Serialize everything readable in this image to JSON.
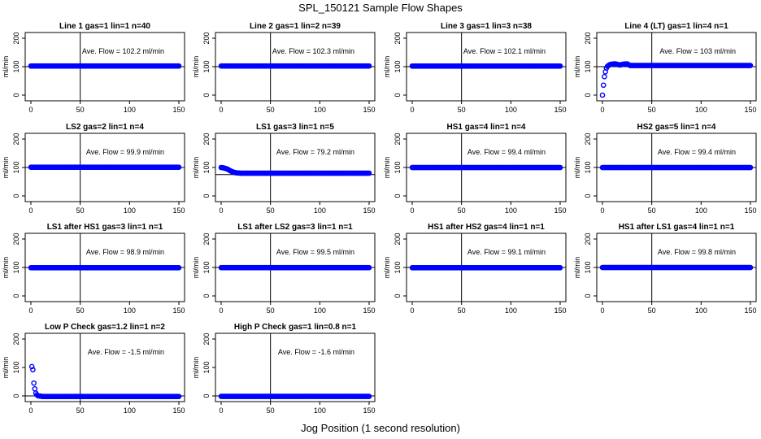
{
  "figure": {
    "title": "SPL_150121  Sample Flow Shapes",
    "xlabel": "Jog Position (1 second resolution)"
  },
  "colors": {
    "points": "#0000ff",
    "lines": "#000000"
  },
  "chart_data": [
    {
      "type": "scatter",
      "title": "Line 1 gas=1 lin=1 n=40",
      "ylabel": "ml/min",
      "annotation": "Ave. Flow = 102.2  ml/min",
      "xlim": [
        0,
        150
      ],
      "ylim": [
        -20,
        220
      ],
      "yticks": [
        0,
        100,
        200
      ],
      "xticks": [
        0,
        50,
        100,
        150
      ],
      "hline": 100,
      "vline": 50,
      "series": [
        {
          "x": [
            0,
            150
          ],
          "y": [
            102.2,
            102.2
          ]
        }
      ]
    },
    {
      "type": "scatter",
      "title": "Line 2 gas=1 lin=2 n=39",
      "ylabel": "ml/min",
      "annotation": "Ave. Flow = 102.3  ml/min",
      "xlim": [
        0,
        150
      ],
      "ylim": [
        -20,
        220
      ],
      "yticks": [
        0,
        100,
        200
      ],
      "xticks": [
        0,
        50,
        100,
        150
      ],
      "hline": 100,
      "vline": 50,
      "series": [
        {
          "x": [
            0,
            150
          ],
          "y": [
            102.3,
            102.3
          ]
        }
      ]
    },
    {
      "type": "scatter",
      "title": "Line 3 gas=1 lin=3 n=38",
      "ylabel": "ml/min",
      "annotation": "Ave. Flow = 102.1  ml/min",
      "xlim": [
        0,
        150
      ],
      "ylim": [
        -20,
        220
      ],
      "yticks": [
        0,
        100,
        200
      ],
      "xticks": [
        0,
        50,
        100,
        150
      ],
      "hline": 100,
      "vline": 50,
      "series": [
        {
          "x": [
            0,
            150
          ],
          "y": [
            102.1,
            102.1
          ]
        }
      ]
    },
    {
      "type": "scatter",
      "title": "Line 4 (LT) gas=1 lin=4 n=1",
      "ylabel": "ml/min",
      "annotation": "Ave. Flow = 103  ml/min",
      "xlim": [
        0,
        150
      ],
      "ylim": [
        -20,
        220
      ],
      "yticks": [
        0,
        100,
        200
      ],
      "xticks": [
        0,
        50,
        100,
        150
      ],
      "hline": 100,
      "vline": 50,
      "series": [
        {
          "x": [
            0,
            1,
            2,
            3,
            4,
            5,
            6,
            7,
            8,
            9,
            10,
            11,
            12,
            13,
            14,
            15,
            16,
            18,
            20,
            22,
            25,
            28,
            150
          ],
          "y": [
            0,
            35,
            65,
            82,
            95,
            101,
            104,
            106,
            108,
            108,
            109,
            109,
            110,
            110,
            109,
            108,
            107,
            106,
            108,
            109,
            110,
            104,
            104
          ]
        }
      ]
    },
    {
      "type": "scatter",
      "title": "LS2 gas=2 lin=1 n=4",
      "ylabel": "ml/min",
      "annotation": "Ave. Flow = 99.9  ml/min",
      "xlim": [
        0,
        150
      ],
      "ylim": [
        -20,
        220
      ],
      "yticks": [
        0,
        100,
        200
      ],
      "xticks": [
        0,
        50,
        100,
        150
      ],
      "hline": 100,
      "vline": 50,
      "series": [
        {
          "x": [
            0,
            150
          ],
          "y": [
            101,
            101
          ]
        }
      ]
    },
    {
      "type": "scatter",
      "title": "LS1 gas=3 lin=1 n=5",
      "ylabel": "ml/min",
      "annotation": "Ave. Flow = 79.2  ml/min",
      "xlim": [
        0,
        150
      ],
      "ylim": [
        -20,
        220
      ],
      "yticks": [
        0,
        100,
        200
      ],
      "xticks": [
        0,
        50,
        100,
        150
      ],
      "hline": 75,
      "vline": 50,
      "series": [
        {
          "x": [
            0,
            2,
            4,
            6,
            8,
            10,
            12,
            14,
            16,
            20,
            150
          ],
          "y": [
            100,
            99,
            97,
            95,
            91,
            87,
            84,
            82,
            81,
            80,
            80
          ]
        }
      ]
    },
    {
      "type": "scatter",
      "title": "HS1 gas=4 lin=1 n=4",
      "ylabel": "ml/min",
      "annotation": "Ave. Flow = 99.4  ml/min",
      "xlim": [
        0,
        150
      ],
      "ylim": [
        -20,
        220
      ],
      "yticks": [
        0,
        100,
        200
      ],
      "xticks": [
        0,
        50,
        100,
        150
      ],
      "hline": 100,
      "vline": 50,
      "series": [
        {
          "x": [
            0,
            150
          ],
          "y": [
            100,
            100
          ]
        }
      ]
    },
    {
      "type": "scatter",
      "title": "HS2 gas=5 lin=1 n=4",
      "ylabel": "ml/min",
      "annotation": "Ave. Flow = 99.4  ml/min",
      "xlim": [
        0,
        150
      ],
      "ylim": [
        -20,
        220
      ],
      "yticks": [
        0,
        100,
        200
      ],
      "xticks": [
        0,
        50,
        100,
        150
      ],
      "hline": 100,
      "vline": 50,
      "series": [
        {
          "x": [
            0,
            150
          ],
          "y": [
            100,
            100
          ]
        }
      ]
    },
    {
      "type": "scatter",
      "title": "LS1 after HS1 gas=3 lin=1 n=1",
      "ylabel": "ml/min",
      "annotation": "Ave. Flow = 98.9  ml/min",
      "xlim": [
        0,
        150
      ],
      "ylim": [
        -20,
        220
      ],
      "yticks": [
        0,
        100,
        200
      ],
      "xticks": [
        0,
        50,
        100,
        150
      ],
      "hline": 100,
      "vline": 50,
      "series": [
        {
          "x": [
            0,
            150
          ],
          "y": [
            99,
            99
          ]
        }
      ]
    },
    {
      "type": "scatter",
      "title": "LS1 after LS2 gas=3 lin=1 n=1",
      "ylabel": "ml/min",
      "annotation": "Ave. Flow = 99.5  ml/min",
      "xlim": [
        0,
        150
      ],
      "ylim": [
        -20,
        220
      ],
      "yticks": [
        0,
        100,
        200
      ],
      "xticks": [
        0,
        50,
        100,
        150
      ],
      "hline": 100,
      "vline": 50,
      "series": [
        {
          "x": [
            0,
            150
          ],
          "y": [
            99.5,
            99.5
          ]
        }
      ]
    },
    {
      "type": "scatter",
      "title": "HS1 after HS2 gas=4 lin=1 n=1",
      "ylabel": "ml/min",
      "annotation": "Ave. Flow = 99.1  ml/min",
      "xlim": [
        0,
        150
      ],
      "ylim": [
        -20,
        220
      ],
      "yticks": [
        0,
        100,
        200
      ],
      "xticks": [
        0,
        50,
        100,
        150
      ],
      "hline": 100,
      "vline": 50,
      "series": [
        {
          "x": [
            0,
            150
          ],
          "y": [
            99,
            99
          ]
        }
      ]
    },
    {
      "type": "scatter",
      "title": "HS1 after LS1 gas=4 lin=1 n=1",
      "ylabel": "ml/min",
      "annotation": "Ave. Flow = 99.8  ml/min",
      "xlim": [
        0,
        150
      ],
      "ylim": [
        -20,
        220
      ],
      "yticks": [
        0,
        100,
        200
      ],
      "xticks": [
        0,
        50,
        100,
        150
      ],
      "hline": 100,
      "vline": 50,
      "series": [
        {
          "x": [
            0,
            150
          ],
          "y": [
            100,
            100
          ]
        }
      ]
    },
    {
      "type": "scatter",
      "title": "Low P Check gas=1.2 lin=1 n=2",
      "ylabel": "ml/min",
      "annotation": "Ave. Flow = -1.5  ml/min",
      "xlim": [
        0,
        150
      ],
      "ylim": [
        -20,
        220
      ],
      "yticks": [
        0,
        100,
        200
      ],
      "xticks": [
        0,
        50,
        100,
        150
      ],
      "hline": 0,
      "vline": 50,
      "series": [
        {
          "x": [
            1,
            2,
            3,
            4,
            5,
            6,
            7,
            8,
            10,
            12,
            15,
            150
          ],
          "y": [
            103,
            92,
            45,
            25,
            10,
            4,
            1,
            0,
            -1,
            -2,
            -2,
            -2
          ]
        }
      ]
    },
    {
      "type": "scatter",
      "title": "High P Check gas=1 lin=0.8 n=1",
      "ylabel": "ml/min",
      "annotation": "Ave. Flow = -1.6  ml/min",
      "xlim": [
        0,
        150
      ],
      "ylim": [
        -20,
        220
      ],
      "yticks": [
        0,
        100,
        200
      ],
      "xticks": [
        0,
        50,
        100,
        150
      ],
      "hline": 0,
      "vline": 50,
      "series": [
        {
          "x": [
            0,
            150
          ],
          "y": [
            -1.6,
            -1.6
          ]
        }
      ]
    }
  ]
}
